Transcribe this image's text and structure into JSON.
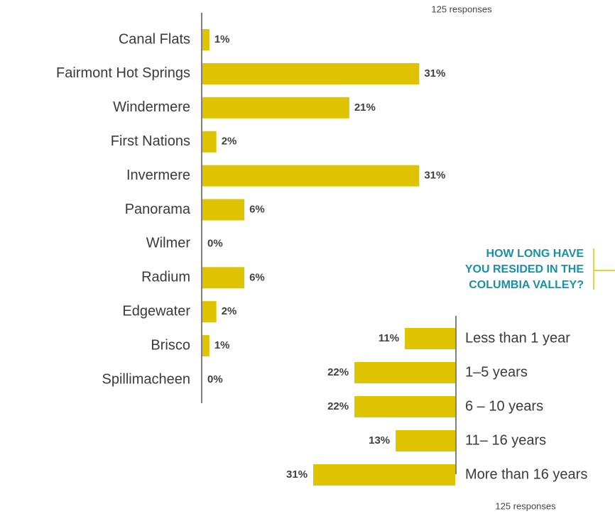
{
  "chart_data": [
    {
      "type": "hbar",
      "note": "125 responses",
      "color": "#dfc300",
      "categories": [
        "Canal Flats",
        "Fairmont Hot Springs",
        "Windermere",
        "First Nations",
        "Invermere",
        "Panorama",
        "Wilmer",
        "Radium",
        "Edgewater",
        "Brisco",
        "Spillimacheen"
      ],
      "values": [
        1,
        31,
        21,
        2,
        31,
        6,
        0,
        6,
        2,
        1,
        0
      ],
      "value_labels": [
        "1%",
        "31%",
        "21%",
        "2%",
        "31%",
        "6%",
        "0%",
        "6%",
        "2%",
        "1%",
        "0%"
      ]
    },
    {
      "type": "hbar-left",
      "title": [
        "HOW LONG HAVE",
        "YOU RESIDED IN THE",
        "COLUMBIA VALLEY?"
      ],
      "note": "125 responses",
      "color": "#dfc300",
      "categories": [
        "Less than 1 year",
        "1–5 years",
        "6 – 10 years",
        "11– 16 years",
        "More than 16 years"
      ],
      "values": [
        11,
        22,
        22,
        13,
        31
      ],
      "value_labels": [
        "11%",
        "22%",
        "22%",
        "13%",
        "31%"
      ]
    }
  ]
}
